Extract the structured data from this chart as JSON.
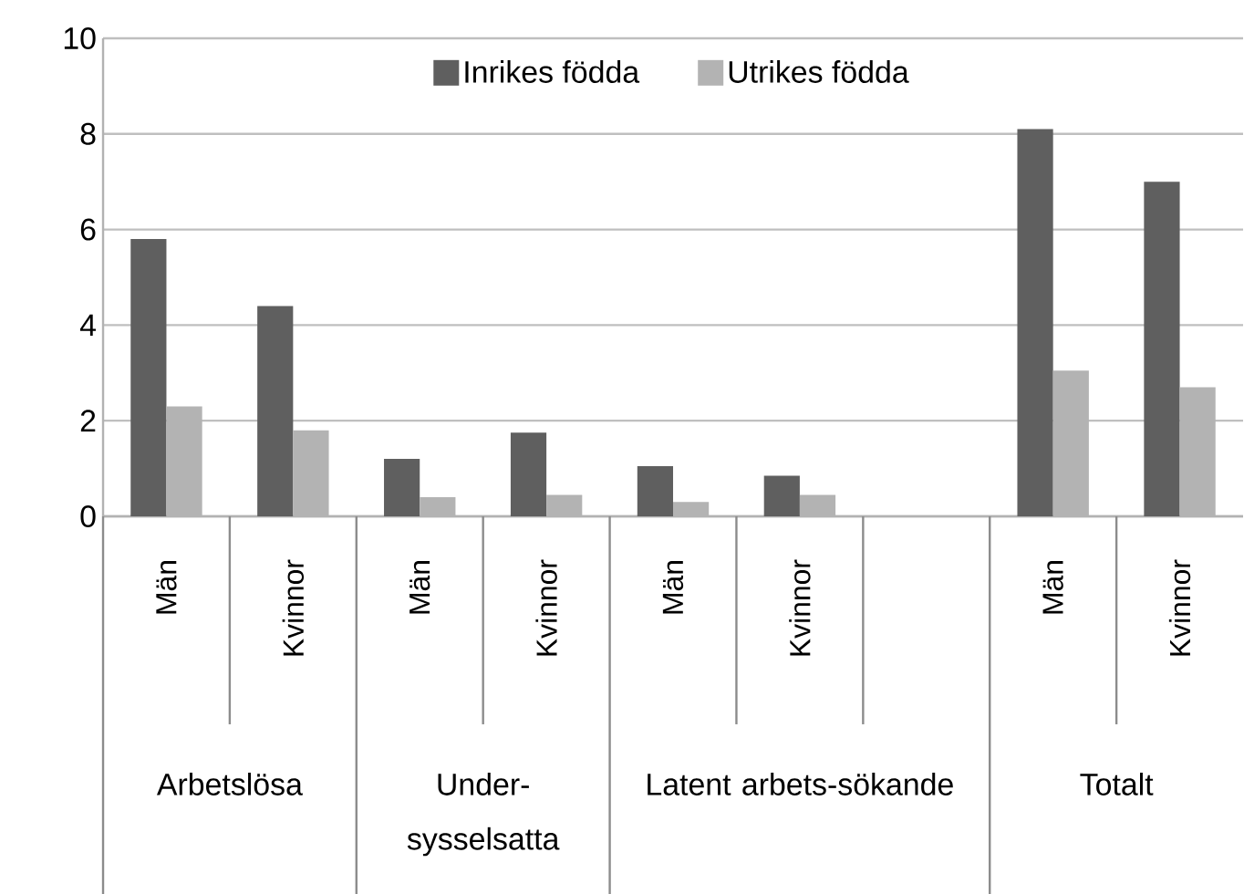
{
  "chart_data": {
    "type": "bar",
    "categories": [
      "Män",
      "Kvinnor",
      "Män",
      "Kvinnor",
      "Män",
      "Kvinnor",
      null,
      "Män",
      "Kvinnor"
    ],
    "series": [
      {
        "name": "Inrikes födda",
        "color": "#5f5f5f",
        "values": [
          5.8,
          4.4,
          1.2,
          1.75,
          1.05,
          0.85,
          null,
          8.1,
          7.0
        ]
      },
      {
        "name": "Utrikes födda",
        "color": "#b3b3b3",
        "values": [
          2.3,
          1.8,
          0.4,
          0.45,
          0.3,
          0.45,
          null,
          3.05,
          2.7
        ]
      }
    ],
    "ylim": [
      0,
      10
    ],
    "yticks": [
      0,
      2,
      4,
      6,
      8,
      10
    ],
    "grid": "y",
    "legend": "top",
    "annotations": [
      "Arbetslösa",
      "Under-sysselsatta",
      "Latent arbets-sökande",
      "Totalt"
    ]
  }
}
